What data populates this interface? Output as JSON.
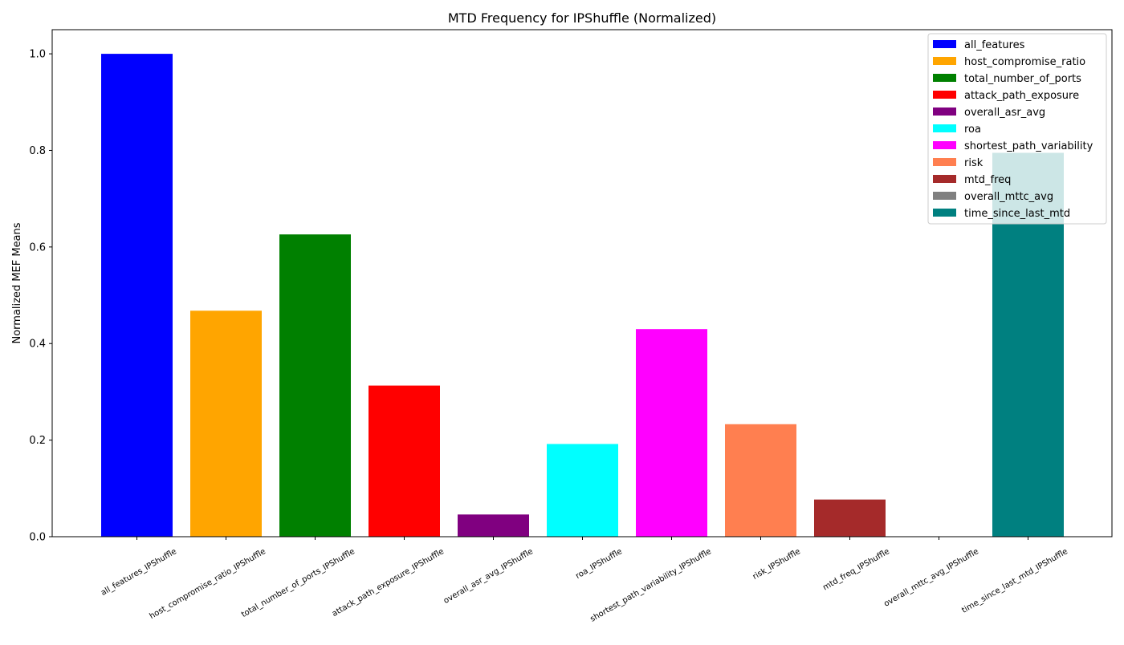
{
  "chart_data": {
    "type": "bar",
    "title": "MTD Frequency for IPShuffle (Normalized)",
    "xlabel": "",
    "ylabel": "Normalized MEF Means",
    "ylim": [
      0,
      1.05
    ],
    "yticks": [
      0.0,
      0.2,
      0.4,
      0.6,
      0.8,
      1.0
    ],
    "ytick_labels": [
      "0.0",
      "0.2",
      "0.4",
      "0.6",
      "0.8",
      "1.0"
    ],
    "grid": false,
    "legend_position": "top-right",
    "categories": [
      "all_features_IPShuffle",
      "host_compromise_ratio_IPShuffle",
      "total_number_of_ports_IPShuffle",
      "attack_path_exposure_IPShuffle",
      "overall_asr_avg_IPShuffle",
      "roa_IPShuffle",
      "shortest_path_variability_IPShuffle",
      "risk_IPShuffle",
      "mtd_freq_IPShuffle",
      "overall_mttc_avg_IPShuffle",
      "time_since_last_mtd_IPShuffle"
    ],
    "values": [
      1.0,
      0.468,
      0.626,
      0.313,
      0.046,
      0.192,
      0.43,
      0.233,
      0.077,
      0.0,
      0.795
    ],
    "colors": [
      "#0000ff",
      "#ffa500",
      "#008000",
      "#ff0000",
      "#800080",
      "#00ffff",
      "#ff00ff",
      "#ff7f50",
      "#a52a2a",
      "#808080",
      "#008080"
    ],
    "legend": [
      {
        "label": "all_features",
        "color": "#0000ff"
      },
      {
        "label": "host_compromise_ratio",
        "color": "#ffa500"
      },
      {
        "label": "total_number_of_ports",
        "color": "#008000"
      },
      {
        "label": "attack_path_exposure",
        "color": "#ff0000"
      },
      {
        "label": "overall_asr_avg",
        "color": "#800080"
      },
      {
        "label": "roa",
        "color": "#00ffff"
      },
      {
        "label": "shortest_path_variability",
        "color": "#ff00ff"
      },
      {
        "label": "risk",
        "color": "#ff7f50"
      },
      {
        "label": "mtd_freq",
        "color": "#a52a2a"
      },
      {
        "label": "overall_mttc_avg",
        "color": "#808080"
      },
      {
        "label": "time_since_last_mtd",
        "color": "#008080"
      }
    ]
  }
}
